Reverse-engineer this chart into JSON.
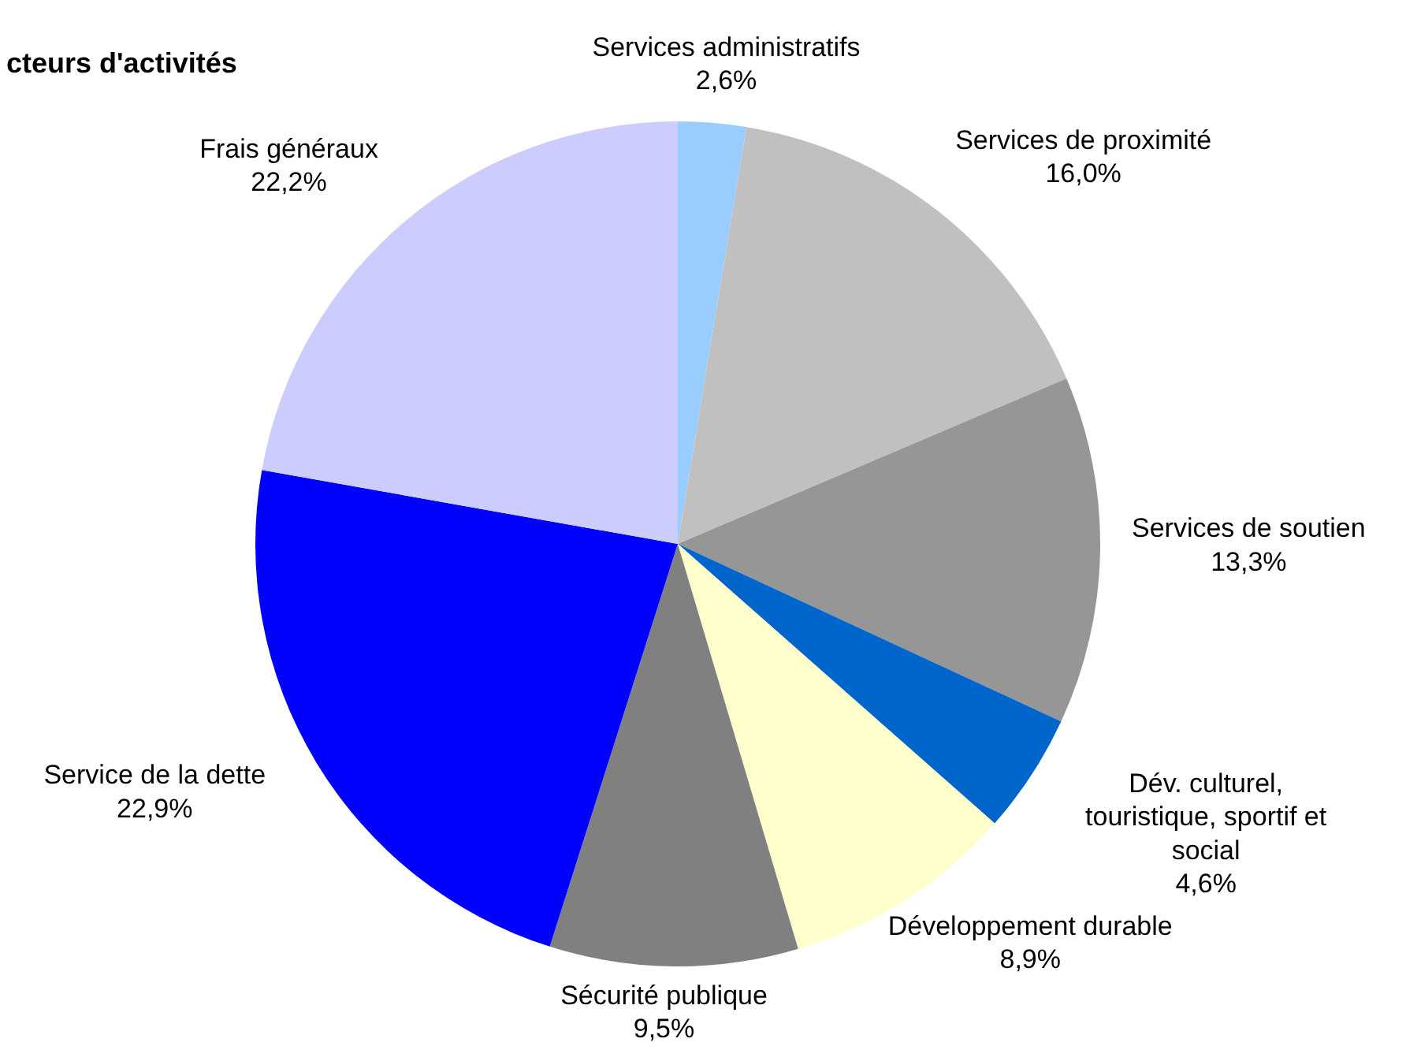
{
  "chart_data": {
    "type": "pie",
    "title": "cteurs d'activités",
    "categories": [
      "Services administratifs",
      "Services de proximité",
      "Services de soutien",
      "Dév. culturel, touristique, sportif et social",
      "Développement durable",
      "Sécurité publique",
      "Service de la dette",
      "Frais généraux"
    ],
    "values": [
      2.6,
      16.0,
      13.3,
      4.6,
      8.9,
      9.5,
      22.9,
      22.2
    ],
    "value_labels": [
      "2,6%",
      "16,0%",
      "13,3%",
      "4,6%",
      "8,9%",
      "9,5%",
      "22,9%",
      "22,2%"
    ],
    "colors": [
      "#99ccff",
      "#c0c0c0",
      "#969696",
      "#0066cc",
      "#ffffcc",
      "#808080",
      "#0000ff",
      "#ccccff"
    ],
    "legend": false
  }
}
